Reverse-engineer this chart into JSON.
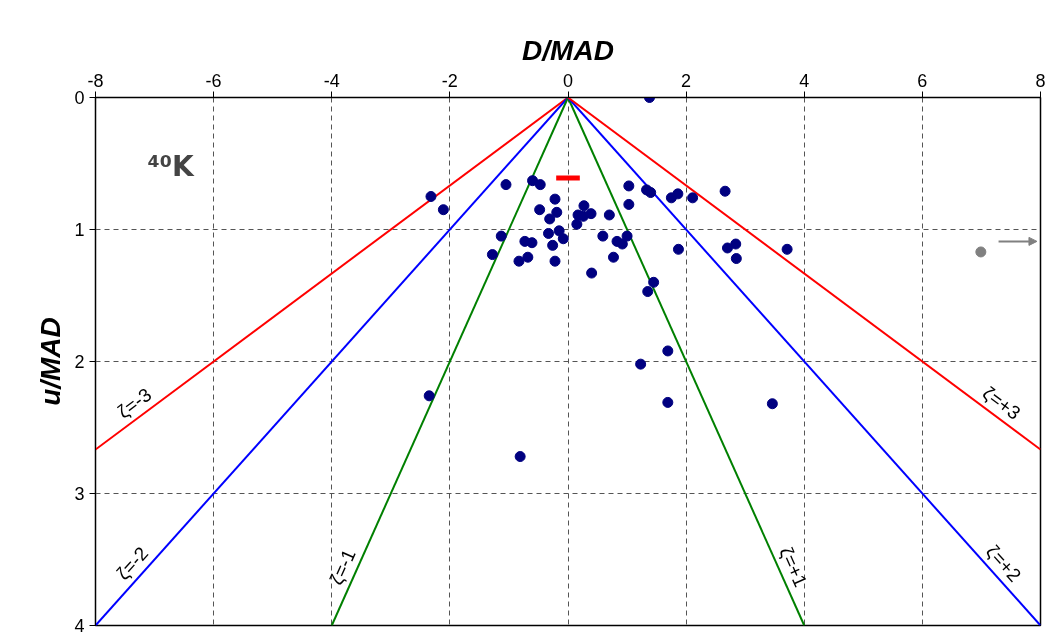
{
  "chart_data": {
    "type": "scatter",
    "xlabel": "D/MAD",
    "ylabel": "u/MAD",
    "xlim": [
      -8,
      8
    ],
    "xticks": [
      -8,
      -6,
      -4,
      -2,
      0,
      2,
      4,
      6,
      8
    ],
    "ylim": [
      4,
      0
    ],
    "yticks": [
      0,
      1,
      2,
      3,
      4
    ],
    "grid": true,
    "series": [
      {
        "type": "line",
        "name": "ζ=-3",
        "color": "#ff0000",
        "x": [
          0,
          -8
        ],
        "values": [
          0,
          2.667
        ]
      },
      {
        "type": "line",
        "name": "ζ=-2",
        "color": "#0000ff",
        "x": [
          0,
          -8
        ],
        "values": [
          0,
          4
        ]
      },
      {
        "type": "line",
        "name": "ζ=-1",
        "color": "#008000",
        "x": [
          0,
          -4
        ],
        "values": [
          0,
          4
        ]
      },
      {
        "type": "line",
        "name": "ζ=+1",
        "color": "#008000",
        "x": [
          0,
          4
        ],
        "values": [
          0,
          4
        ]
      },
      {
        "type": "line",
        "name": "ζ=+2",
        "color": "#0000ff",
        "x": [
          0,
          8
        ],
        "values": [
          0,
          4
        ]
      },
      {
        "type": "line",
        "name": "ζ=+3",
        "color": "#ff0000",
        "x": [
          0,
          8
        ],
        "values": [
          0,
          2.667
        ]
      },
      {
        "type": "line",
        "color": "#ff0000",
        "x": [
          -0.2,
          0.2
        ],
        "values": [
          0.61,
          0.61
        ]
      },
      {
        "type": "scatter",
        "marker": "circle",
        "color": "#000080",
        "x": [
          -2.32,
          -2.11,
          -1.05,
          -0.6,
          -0.47,
          -0.22,
          -0.48,
          -0.19,
          -0.31,
          0.27,
          0.17,
          0.39,
          0.26,
          0.15,
          0.7,
          1.03,
          1.03,
          1.33,
          1.4,
          1.75,
          1.86,
          2.11,
          2.66,
          -1.13,
          -0.33,
          -0.15,
          -0.08,
          -0.73,
          -0.61,
          -0.26,
          -1.28,
          -0.83,
          -0.68,
          -0.22,
          0.59,
          0.83,
          0.92,
          1.0,
          0.77,
          0.4,
          1.87,
          2.7,
          2.84,
          2.85,
          3.71,
          1.45,
          1.35,
          1.38,
          1.23,
          1.69,
          1.69,
          3.46,
          -2.35,
          -0.81
        ],
        "values": [
          0.75,
          0.85,
          0.66,
          0.63,
          0.66,
          0.77,
          0.85,
          0.87,
          0.92,
          0.82,
          0.89,
          0.88,
          0.9,
          0.96,
          0.89,
          0.67,
          0.81,
          0.7,
          0.72,
          0.76,
          0.73,
          0.76,
          0.71,
          1.05,
          1.03,
          1.01,
          1.07,
          1.09,
          1.1,
          1.12,
          1.19,
          1.24,
          1.21,
          1.24,
          1.05,
          1.09,
          1.11,
          1.05,
          1.21,
          1.33,
          1.15,
          1.14,
          1.11,
          1.22,
          1.15,
          1.4,
          1.47,
          0.0,
          2.02,
          1.92,
          2.31,
          2.32,
          2.26,
          2.72
        ]
      },
      {
        "marker": "circle",
        "color": "#808080",
        "x": [
          6.99
        ],
        "values": [
          1.17
        ]
      }
    ],
    "annotations": [
      "⁴⁰K"
    ]
  }
}
